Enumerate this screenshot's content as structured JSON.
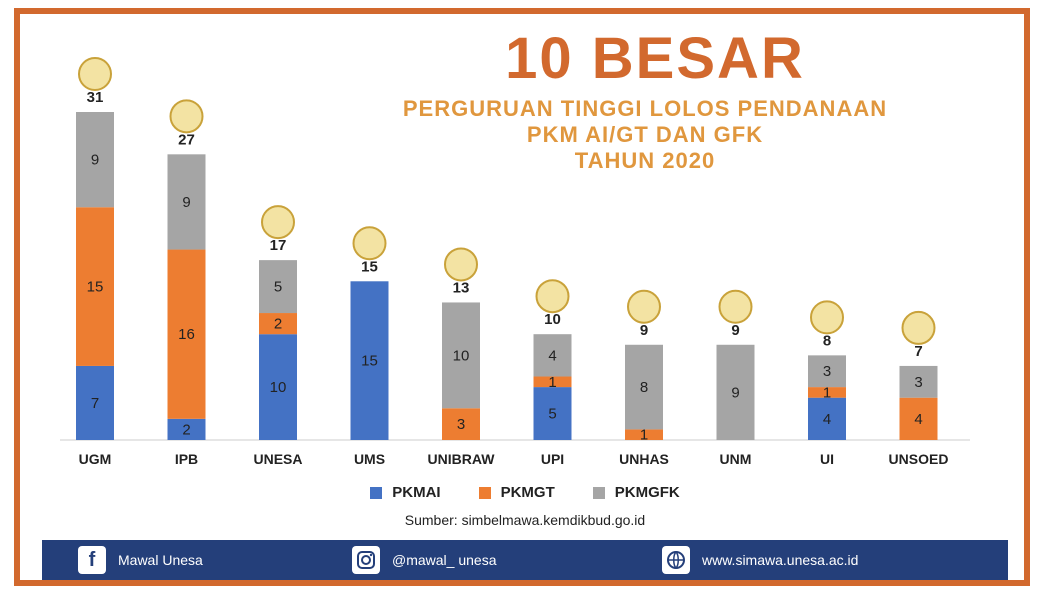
{
  "header": {
    "title": "10 BESAR",
    "subtitle_1": "PERGURUAN TINGGI LOLOS PENDANAAN",
    "subtitle_2": "PKM AI/GT DAN GFK",
    "subtitle_3": "TAHUN 2020"
  },
  "chart_data": {
    "type": "bar",
    "stacked": true,
    "title": "10 BESAR",
    "categories": [
      "UGM",
      "IPB",
      "UNESA",
      "UMS",
      "UNIBRAW",
      "UPI",
      "UNHAS",
      "UNM",
      "UI",
      "UNSOED"
    ],
    "totals": [
      31,
      27,
      17,
      15,
      13,
      10,
      9,
      9,
      8,
      7
    ],
    "series": [
      {
        "name": "PKMAI",
        "color": "#4472c4",
        "values": [
          7,
          2,
          10,
          15,
          0,
          5,
          0,
          0,
          4,
          0
        ]
      },
      {
        "name": "PKMGT",
        "color": "#ed7d31",
        "values": [
          15,
          16,
          2,
          0,
          3,
          1,
          1,
          0,
          1,
          4
        ]
      },
      {
        "name": "PKMGFK",
        "color": "#a5a5a5",
        "values": [
          9,
          9,
          5,
          0,
          10,
          4,
          8,
          9,
          3,
          3
        ]
      }
    ],
    "ylim": [
      0,
      31
    ],
    "grid": false,
    "legend_position": "bottom"
  },
  "source": "Sumber: simbelmawa.kemdikbud.go.id",
  "footer": {
    "facebook": "Mawal Unesa",
    "instagram": "@mawal_ unesa",
    "website": "www.simawa.unesa.ac.id"
  }
}
